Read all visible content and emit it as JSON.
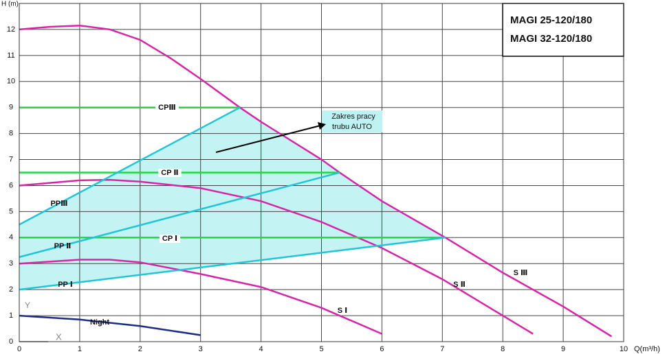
{
  "chart_data": {
    "type": "line",
    "y_label": "H (m)",
    "x_label": "Q(m³/h)",
    "xlim": [
      0,
      10
    ],
    "ylim": [
      0,
      13
    ],
    "xticks": [
      0,
      1,
      2,
      3,
      4,
      5,
      6,
      7,
      8,
      9,
      10
    ],
    "yticks": [
      0,
      1,
      2,
      3,
      4,
      5,
      6,
      7,
      8,
      9,
      10,
      11,
      12
    ],
    "grid": true,
    "model_box": [
      "MAGI 25-120/180",
      "MAGI 32-120/180"
    ],
    "annotation": [
      "Zakres pracy",
      "trubu AUTO"
    ],
    "axis_marks": [
      "Y",
      "X"
    ],
    "fill_color": "#c4f3f3",
    "series": [
      {
        "name": "S Ⅲ",
        "color": "#d626a8",
        "x": [
          0,
          0.5,
          1,
          1.5,
          2,
          2.5,
          3,
          3.65,
          4,
          5,
          5.3,
          6,
          7.05,
          8,
          9,
          9.8
        ],
        "values": [
          12,
          12.1,
          12.15,
          12,
          11.6,
          10.9,
          10.1,
          9,
          8.45,
          7,
          6.5,
          5.4,
          4,
          2.65,
          1.35,
          0.2
        ]
      },
      {
        "name": "S Ⅱ",
        "color": "#d626a8",
        "x": [
          0,
          0.5,
          1,
          1.5,
          2,
          3,
          4,
          5,
          6,
          7,
          8,
          8.5
        ],
        "values": [
          6,
          6.1,
          6.2,
          6.22,
          6.15,
          5.9,
          5.4,
          4.6,
          3.6,
          2.4,
          1,
          0.3
        ]
      },
      {
        "name": "S Ⅰ",
        "color": "#d626a8",
        "x": [
          0,
          1,
          1.5,
          2,
          3,
          4,
          5,
          6
        ],
        "values": [
          3,
          3.15,
          3.15,
          3.05,
          2.6,
          2.1,
          1.3,
          0.3
        ]
      },
      {
        "name": "Night",
        "color": "#1c2c86",
        "x": [
          0,
          1,
          2,
          3
        ],
        "values": [
          1,
          0.85,
          0.6,
          0.25
        ]
      },
      {
        "name": "CPⅢ",
        "color": "#2ad24a",
        "x": [
          0,
          3.65
        ],
        "values": [
          9,
          9
        ]
      },
      {
        "name": "CP Ⅱ",
        "color": "#2ad24a",
        "x": [
          0,
          5.3
        ],
        "values": [
          6.5,
          6.5
        ]
      },
      {
        "name": "CP Ⅰ",
        "color": "#2ad24a",
        "x": [
          0,
          7.05
        ],
        "values": [
          4,
          4
        ]
      },
      {
        "name": "PPⅢ",
        "color": "#22c4d8",
        "x": [
          0,
          3.65
        ],
        "values": [
          4.5,
          9
        ]
      },
      {
        "name": "PP Ⅱ",
        "color": "#22c4d8",
        "x": [
          0,
          5.3
        ],
        "values": [
          3.25,
          6.5
        ]
      },
      {
        "name": "PP Ⅰ",
        "color": "#22c4d8",
        "x": [
          0,
          7.05
        ],
        "values": [
          2,
          4
        ]
      }
    ]
  }
}
